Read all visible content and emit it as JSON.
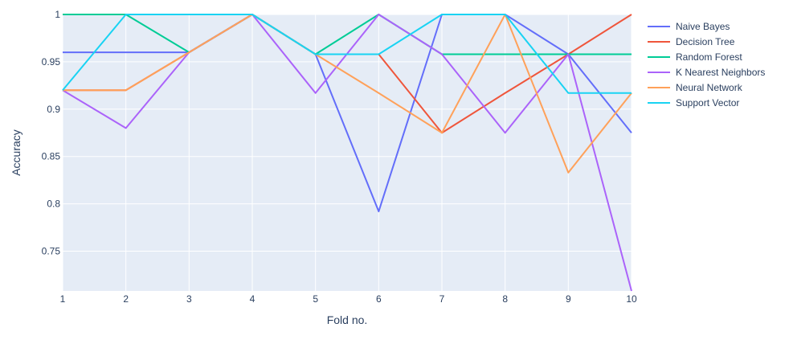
{
  "chart_data": {
    "type": "line",
    "xlabel": "Fold no.",
    "ylabel": "Accuracy",
    "x": [
      1,
      2,
      3,
      4,
      5,
      6,
      7,
      8,
      9,
      10
    ],
    "xlim": [
      1,
      10
    ],
    "ylim": [
      0.708,
      1.0
    ],
    "x_ticks": [
      "1",
      "2",
      "3",
      "4",
      "5",
      "6",
      "7",
      "8",
      "9",
      "10"
    ],
    "y_ticks": [
      {
        "value": 0.75,
        "label": "0.75"
      },
      {
        "value": 0.8,
        "label": "0.8"
      },
      {
        "value": 0.85,
        "label": "0.85"
      },
      {
        "value": 0.9,
        "label": "0.9"
      },
      {
        "value": 0.95,
        "label": "0.95"
      },
      {
        "value": 1.0,
        "label": "1"
      }
    ],
    "grid": true,
    "legend_position": "right",
    "plot_background": "#E5ECF6",
    "series": [
      {
        "name": "Naive Bayes",
        "color": "#636EFA",
        "values": [
          0.96,
          0.96,
          0.96,
          1.0,
          0.958,
          0.792,
          1.0,
          1.0,
          0.958,
          0.875
        ]
      },
      {
        "name": "Decision Tree",
        "color": "#EF553B",
        "values": [
          0.92,
          0.92,
          0.96,
          1.0,
          0.958,
          0.958,
          0.875,
          0.917,
          0.958,
          1.0
        ]
      },
      {
        "name": "Random Forest",
        "color": "#00CC96",
        "values": [
          1.0,
          1.0,
          0.96,
          1.0,
          0.958,
          1.0,
          0.958,
          0.958,
          0.958,
          0.958
        ]
      },
      {
        "name": "K Nearest Neighbors",
        "color": "#AB63FA",
        "values": [
          0.92,
          0.88,
          0.96,
          1.0,
          0.917,
          1.0,
          0.958,
          0.875,
          0.958,
          0.708
        ]
      },
      {
        "name": "Neural Network",
        "color": "#FFA15A",
        "values": [
          0.92,
          0.92,
          0.96,
          1.0,
          0.958,
          0.917,
          0.875,
          1.0,
          0.833,
          0.917
        ]
      },
      {
        "name": "Support Vector",
        "color": "#19D3F3",
        "values": [
          0.92,
          1.0,
          1.0,
          1.0,
          0.958,
          0.958,
          1.0,
          1.0,
          0.917,
          0.917
        ]
      }
    ]
  }
}
